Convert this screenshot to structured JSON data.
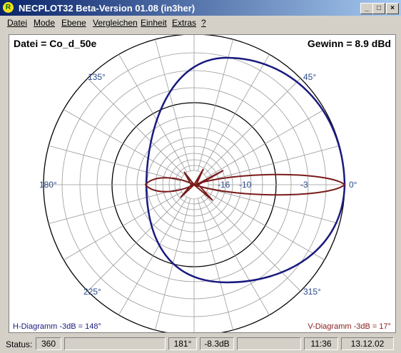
{
  "window": {
    "title": "NECPLOT32  Beta-Version 01.08 (in3her)",
    "icon": "R"
  },
  "menu": [
    "Datei",
    "Mode",
    "Ebene",
    "Vergleichen",
    "Einheit",
    "Extras",
    "?"
  ],
  "plot": {
    "file_label": "Datei = Co_d_50e",
    "gain_label": "Gewinn =  8.9 dBd",
    "angle_labels": [
      "0°",
      "45°",
      "135°",
      "180°",
      "225°",
      "315°"
    ],
    "ring_labels": [
      "-3",
      "-10",
      "-16"
    ],
    "h_diagram": "H-Diagramm -3dB = 148°",
    "v_diagram": "V-Diagramm -3dB = 17°"
  },
  "status": {
    "label": "Status:",
    "fields": [
      "360",
      "181°",
      "-8.3dB",
      "11:36",
      "13.12.02"
    ]
  }
}
